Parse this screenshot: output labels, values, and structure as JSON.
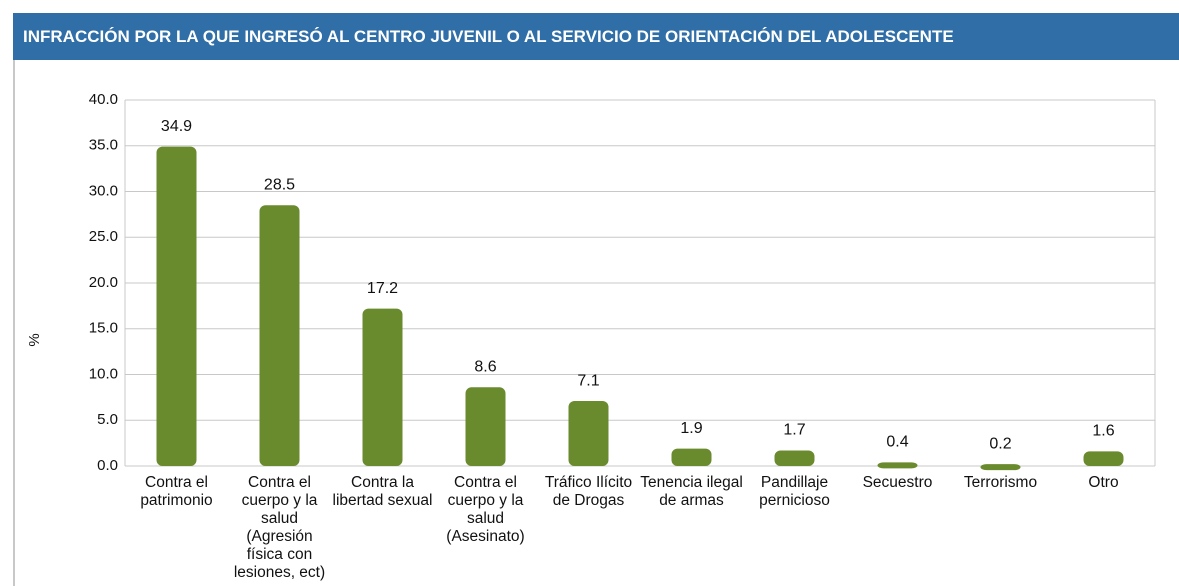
{
  "chart_data": {
    "type": "bar",
    "title": "INFRACCIÓN POR LA QUE INGRESÓ AL CENTRO JUVENIL O AL SERVICIO DE ORIENTACIÓN DEL ADOLESCENTE",
    "y_label": "%",
    "categories": [
      "Contra el patrimonio",
      "Contra el cuerpo y la salud (Agresión física con lesiones, ect)",
      "Contra la libertad sexual",
      "Contra el cuerpo y la salud (Asesinato)",
      "Tráfico Ilícito de Drogas",
      "Tenencia ilegal de armas",
      "Pandillaje pernicioso",
      "Secuestro",
      "Terrorismo",
      "Otro"
    ],
    "values": [
      34.9,
      28.5,
      17.2,
      8.6,
      7.1,
      1.9,
      1.7,
      0.4,
      0.2,
      1.6
    ],
    "color": "#6a8a2e",
    "ylim": [
      0,
      40
    ],
    "yticks": [
      {
        "value": 0,
        "label": "0.0"
      },
      {
        "value": 5,
        "label": "5.0"
      },
      {
        "value": 10,
        "label": "10.0"
      },
      {
        "value": 15,
        "label": "15.0"
      },
      {
        "value": 20,
        "label": "20.0"
      },
      {
        "value": 25,
        "label": "25.0"
      },
      {
        "value": 30,
        "label": "30.0"
      },
      {
        "value": 35,
        "label": "35.0"
      },
      {
        "value": 40,
        "label": "40.0"
      }
    ],
    "grid": true
  }
}
